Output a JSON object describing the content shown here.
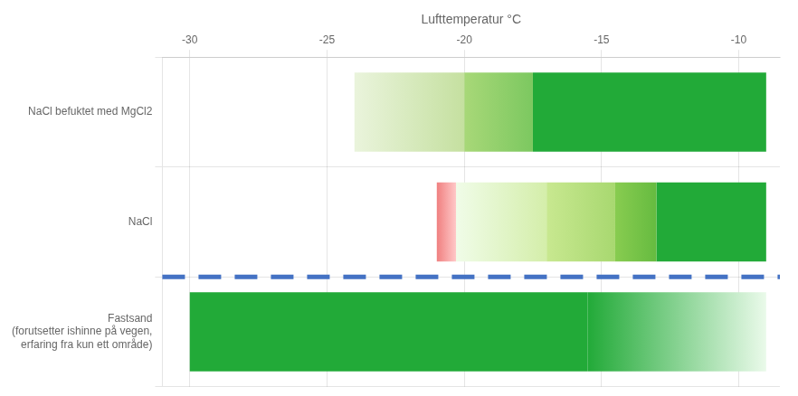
{
  "chart_data": {
    "type": "bar",
    "orientation": "horizontal",
    "xlabel": "Lufttemperatur °C",
    "categories": [
      "NaCl befuktet med MgCl2",
      "NaCl",
      "Fastsand\n(forutsetter ishinne på vegen,\nerfaring fra kun ett område)"
    ],
    "values": [
      [
        [
          -24.0,
          -20.0
        ],
        [
          -20.0,
          -17.5
        ],
        [
          -17.5,
          -9.0
        ]
      ],
      [
        [
          -21.0,
          -20.3
        ],
        [
          -20.3,
          -17.0
        ],
        [
          -17.0,
          -14.5
        ],
        [
          -14.5,
          -13.0
        ],
        [
          -13.0,
          -9.0
        ]
      ],
      [
        [
          -30.0,
          -15.5
        ],
        [
          -15.5,
          -9.0
        ]
      ]
    ],
    "colors": [
      [
        [
          "#eaf4dc",
          "#c5e0a0"
        ],
        [
          "#a8d878",
          "#7cc860"
        ],
        [
          "#22aa38",
          "#22aa38"
        ]
      ],
      [
        [
          "#f08080",
          "#ffc8c8"
        ],
        [
          "#f0fce8",
          "#d4eeaa"
        ],
        [
          "#c8e890",
          "#a8d870"
        ],
        [
          "#88cc50",
          "#66bb40"
        ],
        [
          "#22aa38",
          "#22aa38"
        ]
      ],
      [
        [
          "#22aa38",
          "#22aa38"
        ],
        [
          "#22aa38",
          "#eafaea"
        ]
      ]
    ],
    "xlim": [
      -31,
      -8.5
    ],
    "xticks": [
      -30,
      -25,
      -20,
      -15,
      -10
    ],
    "grid": true,
    "separators": [
      {
        "after": "NaCl",
        "color": "#4472c4",
        "line_style": "dashed"
      }
    ]
  }
}
